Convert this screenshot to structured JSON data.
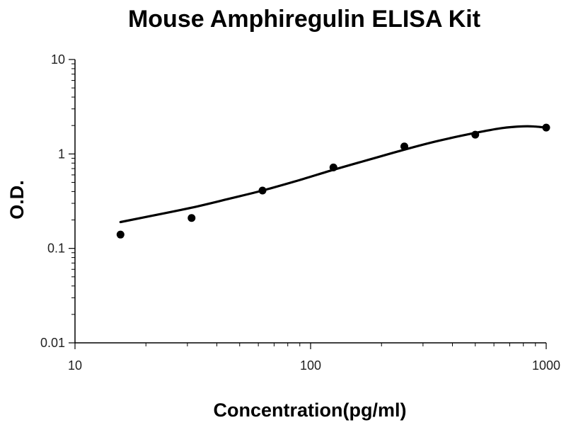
{
  "chart_data": {
    "type": "scatter",
    "title": "Mouse Amphiregulin ELISA Kit",
    "xlabel": "Concentration(pg/ml)",
    "ylabel": "O.D.",
    "x_scale": "log",
    "y_scale": "log",
    "xlim": [
      10,
      1000
    ],
    "ylim": [
      0.01,
      10
    ],
    "x_ticks": [
      {
        "value": 10,
        "label": "10"
      },
      {
        "value": 100,
        "label": "100"
      },
      {
        "value": 1000,
        "label": "1000"
      }
    ],
    "y_ticks": [
      {
        "value": 10,
        "label": "10"
      },
      {
        "value": 1,
        "label": "1"
      },
      {
        "value": 0.1,
        "label": "0.1"
      },
      {
        "value": 0.01,
        "label": "0.01"
      }
    ],
    "grid": false,
    "legend": "none",
    "points": [
      {
        "x": 15.6,
        "y": 0.14
      },
      {
        "x": 31.25,
        "y": 0.21
      },
      {
        "x": 62.5,
        "y": 0.41
      },
      {
        "x": 125,
        "y": 0.72
      },
      {
        "x": 250,
        "y": 1.2
      },
      {
        "x": 500,
        "y": 1.6
      },
      {
        "x": 1000,
        "y": 1.9
      }
    ],
    "fit_curve": [
      {
        "x": 15.6,
        "y": 0.19
      },
      {
        "x": 20,
        "y": 0.215
      },
      {
        "x": 31.25,
        "y": 0.27
      },
      {
        "x": 45,
        "y": 0.335
      },
      {
        "x": 62.5,
        "y": 0.41
      },
      {
        "x": 90,
        "y": 0.53
      },
      {
        "x": 125,
        "y": 0.68
      },
      {
        "x": 180,
        "y": 0.88
      },
      {
        "x": 250,
        "y": 1.11
      },
      {
        "x": 350,
        "y": 1.38
      },
      {
        "x": 500,
        "y": 1.67
      },
      {
        "x": 650,
        "y": 1.88
      },
      {
        "x": 800,
        "y": 1.96
      },
      {
        "x": 900,
        "y": 1.95
      },
      {
        "x": 1000,
        "y": 1.9
      }
    ],
    "marker_color": "#000000",
    "line_color": "#000000"
  }
}
